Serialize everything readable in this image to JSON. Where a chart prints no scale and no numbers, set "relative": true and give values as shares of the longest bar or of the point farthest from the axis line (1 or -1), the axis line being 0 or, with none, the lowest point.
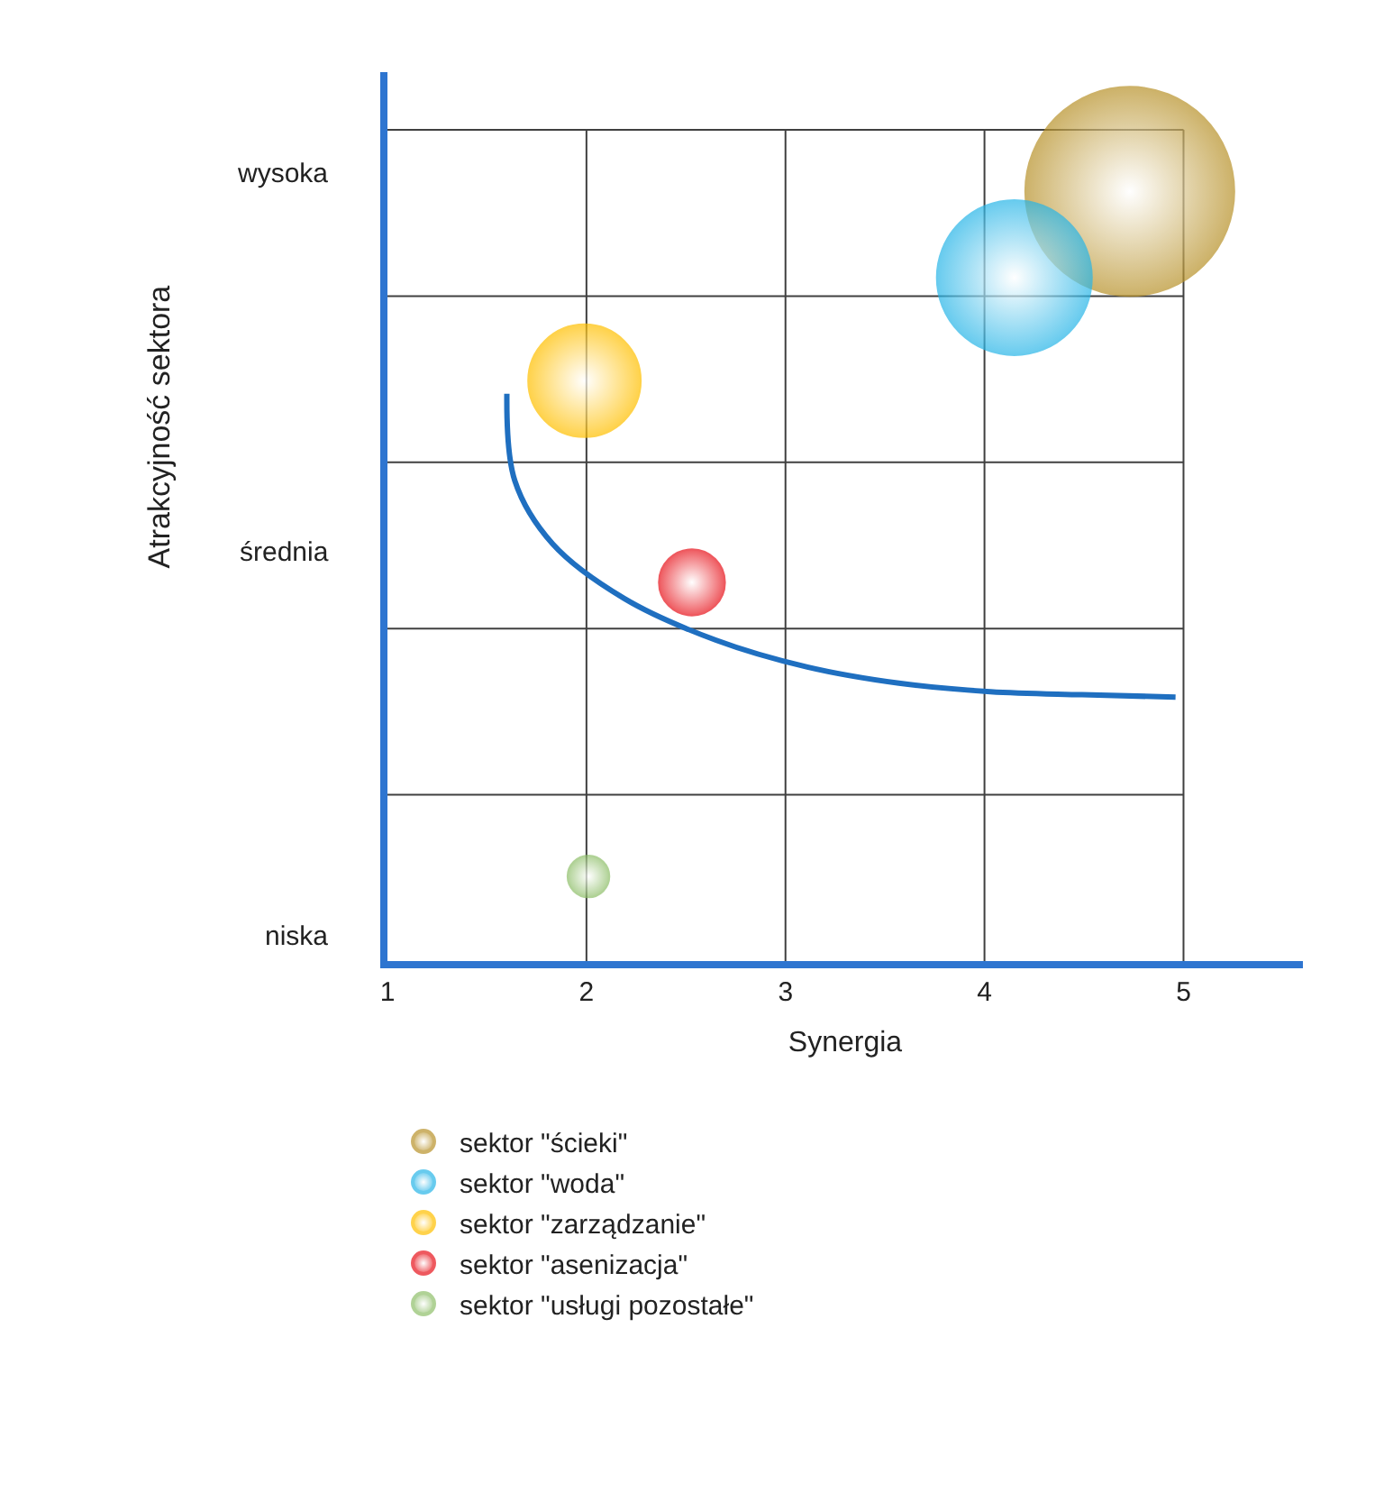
{
  "chart_data": {
    "type": "bubble",
    "xlabel": "Synergia",
    "relative": true,
    "xlim": [
      1,
      5.6
    ],
    "xticks": [
      1,
      2,
      3,
      4,
      5
    ],
    "annotations": [
      "wysoka",
      "średnia",
      "niska",
      "Atrakcyjność sektora"
    ],
    "grid": true,
    "legend": "bottom",
    "marker": "circle",
    "series": [
      {
        "name": "sektor \"ścieki\"",
        "color": "#b8922a",
        "x": [
          4.73
        ],
        "values": [
          1
        ],
        "sizes": [
          1
        ]
      },
      {
        "name": "sektor \"woda\"",
        "color": "#29b6e8",
        "x": [
          4.15
        ],
        "values": [
          0.888
        ],
        "sizes": [
          0.55
        ]
      },
      {
        "name": "sektor \"zarządzanie\"",
        "color": "#ffc000",
        "x": [
          1.99
        ],
        "values": [
          0.754
        ],
        "sizes": [
          0.29
        ]
      },
      {
        "name": "sektor \"asenizacja\"",
        "color": "#e8141c",
        "x": [
          2.53
        ],
        "values": [
          0.492
        ],
        "sizes": [
          0.1
        ]
      },
      {
        "name": "sektor \"usługi pozostałe\"",
        "color": "#8fbf6a",
        "x": [
          2.01
        ],
        "values": [
          0.11
        ],
        "sizes": [
          0.04
        ]
      },
      {
        "type": "line",
        "marker": "none",
        "color": "#1f6fc0",
        "x": [
          1.6,
          1.64,
          1.83,
          2.19,
          2.65,
          3.11,
          3.57,
          4.03,
          4.49,
          4.96
        ],
        "values": [
          0.737,
          0.624,
          0.542,
          0.471,
          0.417,
          0.382,
          0.361,
          0.35,
          0.346,
          0.343
        ]
      }
    ]
  }
}
